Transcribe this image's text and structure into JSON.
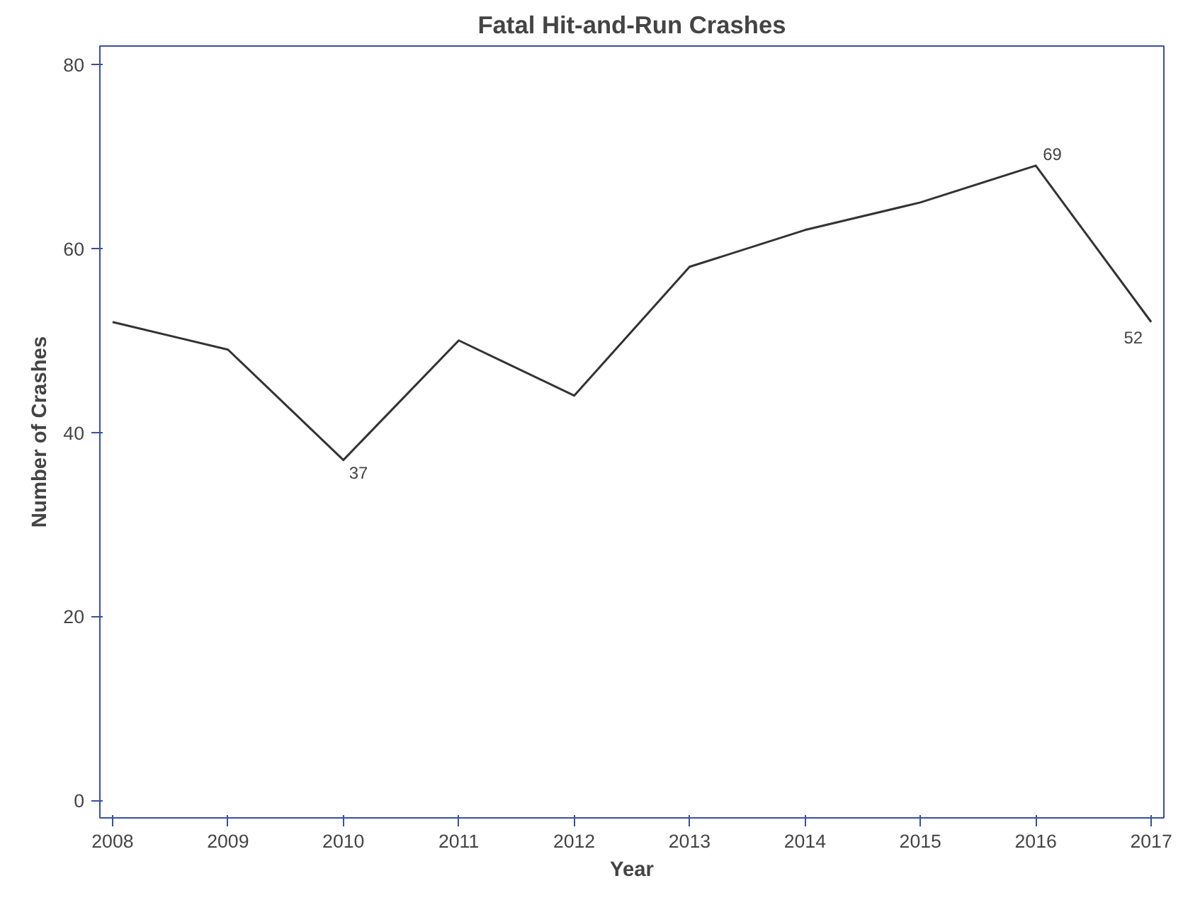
{
  "chart_data": {
    "type": "line",
    "title": "Fatal Hit-and-Run Crashes",
    "xlabel": "Year",
    "ylabel": "Number of Crashes",
    "x": [
      2008,
      2009,
      2010,
      2011,
      2012,
      2013,
      2014,
      2015,
      2016,
      2017
    ],
    "series": [
      {
        "color": "#333333",
        "values": [
          52,
          49,
          37,
          50,
          44,
          58,
          62,
          65,
          69,
          52
        ],
        "value_labels": [
          null,
          null,
          "37",
          null,
          null,
          null,
          null,
          null,
          "69",
          "52"
        ]
      }
    ],
    "xlim": [
      2007.89,
      2017.11
    ],
    "ylim": [
      -1.9,
      82
    ],
    "xticks": [
      2008,
      2009,
      2010,
      2011,
      2012,
      2013,
      2014,
      2015,
      2016,
      2017
    ],
    "yticks": [
      0,
      20,
      40,
      60,
      80
    ],
    "grid": false,
    "marker": "none",
    "line_style": "solid"
  }
}
